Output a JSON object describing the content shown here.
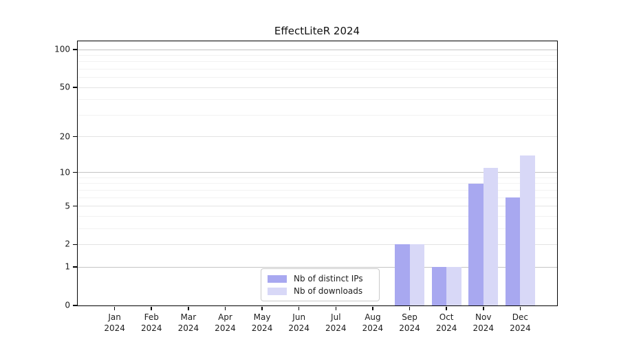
{
  "chart_data": {
    "type": "bar",
    "title": "EffectLiteR 2024",
    "categories": [
      "Jan",
      "Feb",
      "Mar",
      "Apr",
      "May",
      "Jun",
      "Jul",
      "Aug",
      "Sep",
      "Oct",
      "Nov",
      "Dec"
    ],
    "category_year": "2024",
    "series": [
      {
        "name": "Nb of distinct IPs",
        "color": "#a8a8f0",
        "values": [
          0,
          0,
          0,
          0,
          0,
          0,
          0,
          0,
          2,
          1,
          8,
          6
        ]
      },
      {
        "name": "Nb of downloads",
        "color": "#d8d8f7",
        "values": [
          0,
          0,
          0,
          0,
          0,
          0,
          0,
          0,
          2,
          1,
          11,
          14
        ]
      }
    ],
    "xlabel": "",
    "ylabel": "",
    "y_scale": "log1p",
    "y_ticks": [
      0,
      1,
      2,
      5,
      10,
      20,
      50,
      100
    ],
    "y_decade_ticks": [
      1,
      10,
      100
    ],
    "y_minor_gridlines": [
      3,
      4,
      6,
      7,
      8,
      9,
      30,
      40,
      60,
      70,
      80,
      90
    ],
    "ylim": [
      0,
      116
    ],
    "grid": "on",
    "legend_position": "lower center inside axes"
  },
  "colors": {
    "grid_decade": "#c3c3c3",
    "grid_major": "#e3e3e3",
    "grid_minor": "#f2f2f2",
    "spine": "#000000",
    "text": "#1c1c1c",
    "background": "#ffffff"
  }
}
